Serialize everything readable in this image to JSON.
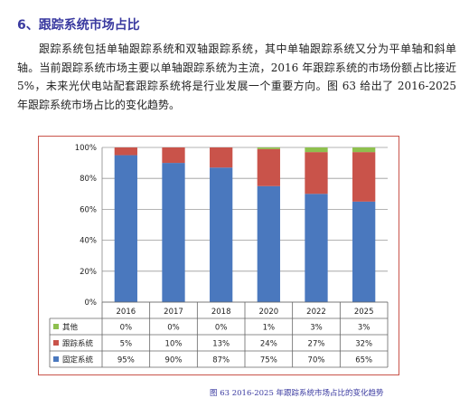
{
  "heading": "6、跟踪系统市场占比",
  "paragraph": "跟踪系统包括单轴跟踪系统和双轴跟踪系统，其中单轴跟踪系统又分为平单轴和斜单轴。当前跟踪系统市场主要以单轴跟踪系统为主流，2016 年跟踪系统的市场份额占比接近 5%，未来光伏电站配套跟踪系统将是行业发展一个重要方向。图 63 给出了 2016-2025 年跟踪系统市场占比的变化趋势。",
  "caption": "图 63 2016-2025 年跟踪系统市场占比的变化趋势",
  "colors": {
    "heading": "#3a3aa0",
    "frame_border": "#c9534a"
  },
  "chart_data": {
    "type": "bar",
    "stacked": true,
    "percent_stacked": true,
    "categories": [
      "2016",
      "2017",
      "2018",
      "2020",
      "2022",
      "2025"
    ],
    "series": [
      {
        "name": "固定系统",
        "color": "#4a78be",
        "values": [
          95,
          90,
          87,
          75,
          70,
          65
        ],
        "labels": [
          "95%",
          "90%",
          "87%",
          "75%",
          "70%",
          "65%"
        ]
      },
      {
        "name": "跟踪系统",
        "color": "#c9534a",
        "values": [
          5,
          10,
          13,
          24,
          27,
          32
        ],
        "labels": [
          "5%",
          "10%",
          "13%",
          "24%",
          "27%",
          "32%"
        ]
      },
      {
        "name": "其他",
        "color": "#8ec04e",
        "values": [
          0,
          0,
          0,
          1,
          3,
          3
        ],
        "labels": [
          "0%",
          "0%",
          "0%",
          "1%",
          "3%",
          "3%"
        ]
      }
    ],
    "table_row_order": [
      "其他",
      "跟踪系统",
      "固定系统"
    ],
    "y_ticks": [
      "0%",
      "20%",
      "40%",
      "60%",
      "80%",
      "100%"
    ],
    "ylim": [
      0,
      100
    ],
    "grid": true,
    "data_table": true
  }
}
